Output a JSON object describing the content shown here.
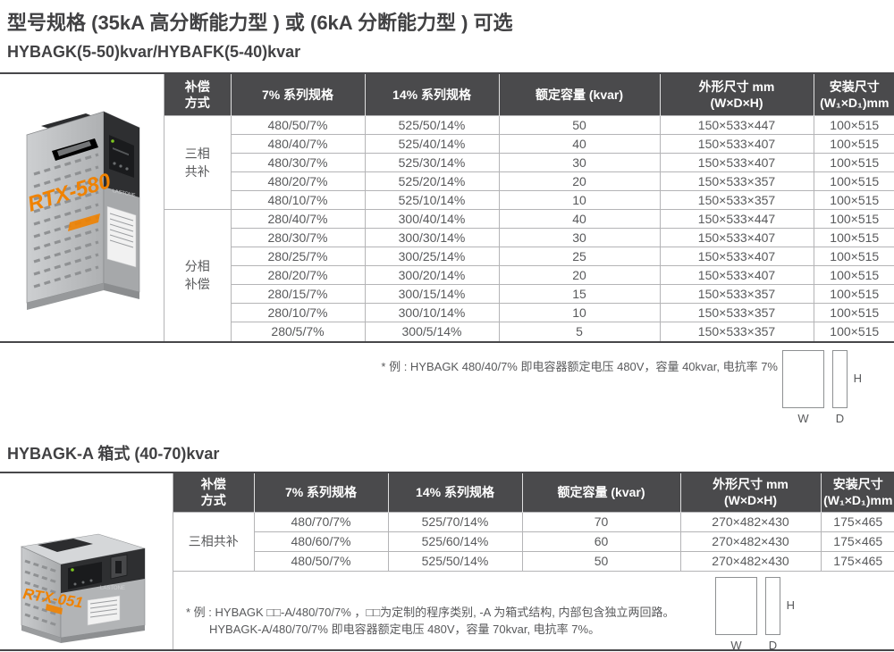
{
  "page": {
    "title": "型号规格 (35kA 高分断能力型 ) 或 (6kA 分断能力型 ) 可选",
    "subtitle": "HYBAGK(5-50)kvar/HYBAFK(5-40)kvar",
    "section2_heading": "HYBAGK-A 箱式 (40-70)kvar"
  },
  "colors": {
    "header_bg": "#4a4a4c",
    "border_dark": "#47474a",
    "border_light": "#b4b4b6",
    "accent_orange": "#f08200",
    "body_text": "#58595b"
  },
  "headers": {
    "compensation_l1": "补偿",
    "compensation_l2": "方式",
    "series7": "7% 系列规格",
    "series14": "14% 系列规格",
    "capacity": "额定容量 (kvar)",
    "dims_l1": "外形尺寸 mm",
    "dims_l2": "(W×D×H)",
    "mount_l1": "安装尺寸",
    "mount_l2": "(W₁×D₁)mm"
  },
  "table1": {
    "groups": [
      {
        "label": "三相共补",
        "rows": [
          [
            "480/50/7%",
            "525/50/14%",
            "50",
            "150×533×447",
            "100×515"
          ],
          [
            "480/40/7%",
            "525/40/14%",
            "40",
            "150×533×407",
            "100×515"
          ],
          [
            "480/30/7%",
            "525/30/14%",
            "30",
            "150×533×407",
            "100×515"
          ],
          [
            "480/20/7%",
            "525/20/14%",
            "20",
            "150×533×357",
            "100×515"
          ],
          [
            "480/10/7%",
            "525/10/14%",
            "10",
            "150×533×357",
            "100×515"
          ]
        ]
      },
      {
        "label": "分相补偿",
        "rows": [
          [
            "280/40/7%",
            "300/40/14%",
            "40",
            "150×533×447",
            "100×515"
          ],
          [
            "280/30/7%",
            "300/30/14%",
            "30",
            "150×533×407",
            "100×515"
          ],
          [
            "280/25/7%",
            "300/25/14%",
            "25",
            "150×533×407",
            "100×515"
          ],
          [
            "280/20/7%",
            "300/20/14%",
            "20",
            "150×533×407",
            "100×515"
          ],
          [
            "280/15/7%",
            "300/15/14%",
            "15",
            "150×533×357",
            "100×515"
          ],
          [
            "280/10/7%",
            "300/10/14%",
            "10",
            "150×533×357",
            "100×515"
          ],
          [
            "280/5/7%",
            "300/5/14%",
            "5",
            "150×533×357",
            "100×515"
          ]
        ]
      }
    ],
    "note": "* 例 : HYBAGK 480/40/7% 即电容器额定电压 480V，容量 40kvar, 电抗率 7%"
  },
  "table2": {
    "groups": [
      {
        "label": "三相共补",
        "rows": [
          [
            "480/70/7%",
            "525/70/14%",
            "70",
            "270×482×430",
            "175×465"
          ],
          [
            "480/60/7%",
            "525/60/14%",
            "60",
            "270×482×430",
            "175×465"
          ],
          [
            "480/50/7%",
            "525/50/14%",
            "50",
            "270×482×430",
            "175×465"
          ]
        ]
      }
    ],
    "note_line1": "* 例 : HYBAGK □□-A/480/70/7% ，□□为定制的程序类别, -A 为箱式结构, 内部包含独立两回路。",
    "note_line2": "HYBAGK-A/480/70/7% 即电容器额定电压 480V，容量 70kvar, 电抗率 7%。"
  },
  "diagram": {
    "w": "W",
    "d": "D",
    "h": "H"
  },
  "products": [
    {
      "logo": "RTX-580",
      "brand": "LASTONE"
    },
    {
      "logo": "RTX-051",
      "brand": "LASTONE"
    }
  ]
}
